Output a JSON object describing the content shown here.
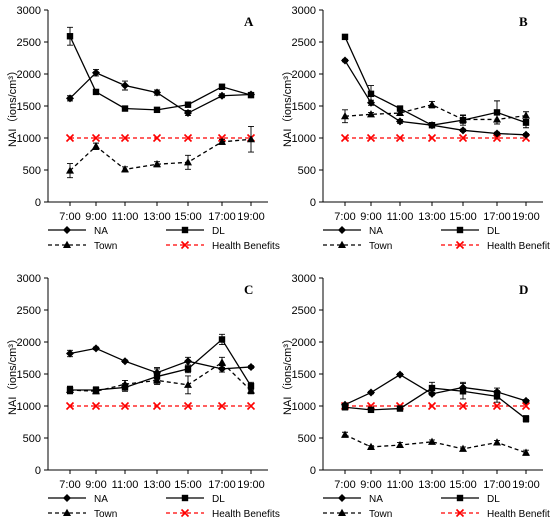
{
  "figure": {
    "x_ticks": [
      "7:00",
      "9:00",
      "11:00",
      "13:00",
      "15:00",
      "17:00",
      "19:00"
    ],
    "y_ticks": [
      0,
      500,
      1000,
      1500,
      2000,
      2500,
      3000
    ],
    "ylabel": "NAI（ions/cm³）",
    "legend": [
      {
        "key": "na",
        "label": "NA",
        "marker": "diamond",
        "color": "#000000",
        "dash": "solid"
      },
      {
        "key": "dl",
        "label": "DL",
        "marker": "square",
        "color": "#000000",
        "dash": "solid"
      },
      {
        "key": "town",
        "label": "Town",
        "marker": "triangle",
        "color": "#000000",
        "dash": "dashed"
      },
      {
        "key": "health",
        "label": "Health Benefits",
        "marker": "x",
        "color": "#ff0000",
        "dash": "dashed"
      }
    ]
  },
  "chart_data": [
    {
      "type": "line",
      "panel_label": "A",
      "categories": [
        "7:00",
        "9:00",
        "11:00",
        "13:00",
        "15:00",
        "17:00",
        "19:00"
      ],
      "ylabel": "NAI（ions/cm³）",
      "ylim": [
        0,
        3000
      ],
      "grid": false,
      "legend_position": "bottom",
      "series": [
        {
          "name": "NA",
          "values": [
            1620,
            2020,
            1820,
            1710,
            1390,
            1660,
            1680
          ],
          "errors": [
            40,
            50,
            70,
            40,
            40,
            30,
            30
          ]
        },
        {
          "name": "DL",
          "values": [
            2590,
            1720,
            1460,
            1440,
            1520,
            1800,
            1670
          ],
          "errors": [
            140,
            30,
            30,
            30,
            30,
            40,
            30
          ]
        },
        {
          "name": "Town",
          "values": [
            490,
            870,
            510,
            590,
            620,
            940,
            980
          ],
          "errors": [
            110,
            50,
            40,
            40,
            110,
            40,
            200
          ]
        },
        {
          "name": "Health Benefits",
          "values": [
            1000,
            1000,
            1000,
            1000,
            1000,
            1000,
            1000
          ]
        }
      ]
    },
    {
      "type": "line",
      "panel_label": "B",
      "categories": [
        "7:00",
        "9:00",
        "11:00",
        "13:00",
        "15:00",
        "17:00",
        "19:00"
      ],
      "ylabel": "NAI（ions/cm³）",
      "ylim": [
        0,
        3000
      ],
      "grid": false,
      "legend_position": "bottom",
      "series": [
        {
          "name": "NA",
          "values": [
            2210,
            1550,
            1260,
            1200,
            1120,
            1070,
            1050
          ],
          "errors": [
            20,
            40,
            30,
            30,
            20,
            20,
            20
          ]
        },
        {
          "name": "DL",
          "values": [
            2580,
            1690,
            1460,
            1200,
            1280,
            1400,
            1240
          ],
          "errors": [
            20,
            130,
            40,
            30,
            80,
            180,
            80
          ]
        },
        {
          "name": "Town",
          "values": [
            1340,
            1370,
            1390,
            1520,
            1290,
            1290,
            1350
          ],
          "errors": [
            100,
            30,
            40,
            50,
            60,
            70,
            60
          ]
        },
        {
          "name": "Health Benefits",
          "values": [
            1000,
            1000,
            1000,
            1000,
            1000,
            1000,
            1000
          ]
        }
      ]
    },
    {
      "type": "line",
      "panel_label": "C",
      "categories": [
        "7:00",
        "9:00",
        "11:00",
        "13:00",
        "15:00",
        "17:00",
        "19:00"
      ],
      "ylabel": "NAI（ions/cm³）",
      "ylim": [
        0,
        3000
      ],
      "grid": false,
      "legend_position": "bottom",
      "series": [
        {
          "name": "NA",
          "values": [
            1820,
            1900,
            1700,
            1520,
            1700,
            1580,
            1610
          ],
          "errors": [
            50,
            20,
            20,
            80,
            60,
            50,
            20
          ]
        },
        {
          "name": "DL",
          "values": [
            1250,
            1250,
            1290,
            1460,
            1580,
            2040,
            1310
          ],
          "errors": [
            60,
            50,
            60,
            120,
            60,
            80,
            60
          ]
        },
        {
          "name": "Town",
          "values": [
            1250,
            1230,
            1340,
            1400,
            1330,
            1680,
            1240
          ],
          "errors": [
            50,
            40,
            60,
            60,
            140,
            80,
            50
          ]
        },
        {
          "name": "Health Benefits",
          "values": [
            1000,
            1000,
            1000,
            1000,
            1000,
            1000,
            1000
          ]
        }
      ]
    },
    {
      "type": "line",
      "panel_label": "D",
      "categories": [
        "7:00",
        "9:00",
        "11:00",
        "13:00",
        "15:00",
        "17:00",
        "19:00"
      ],
      "ylabel": "NAI（ions/cm³）",
      "ylim": [
        0,
        3000
      ],
      "grid": false,
      "legend_position": "bottom",
      "series": [
        {
          "name": "NA",
          "values": [
            1020,
            1210,
            1490,
            1190,
            1290,
            1220,
            1080
          ],
          "errors": [
            20,
            20,
            20,
            20,
            80,
            60,
            20
          ]
        },
        {
          "name": "DL",
          "values": [
            980,
            940,
            960,
            1280,
            1230,
            1150,
            800
          ],
          "errors": [
            30,
            20,
            20,
            90,
            120,
            90,
            50
          ]
        },
        {
          "name": "Town",
          "values": [
            550,
            360,
            390,
            440,
            330,
            430,
            270
          ],
          "errors": [
            40,
            20,
            40,
            30,
            30,
            30,
            40
          ]
        },
        {
          "name": "Health Benefits",
          "values": [
            1000,
            1000,
            1000,
            1000,
            1000,
            1000,
            1000
          ]
        }
      ]
    }
  ]
}
